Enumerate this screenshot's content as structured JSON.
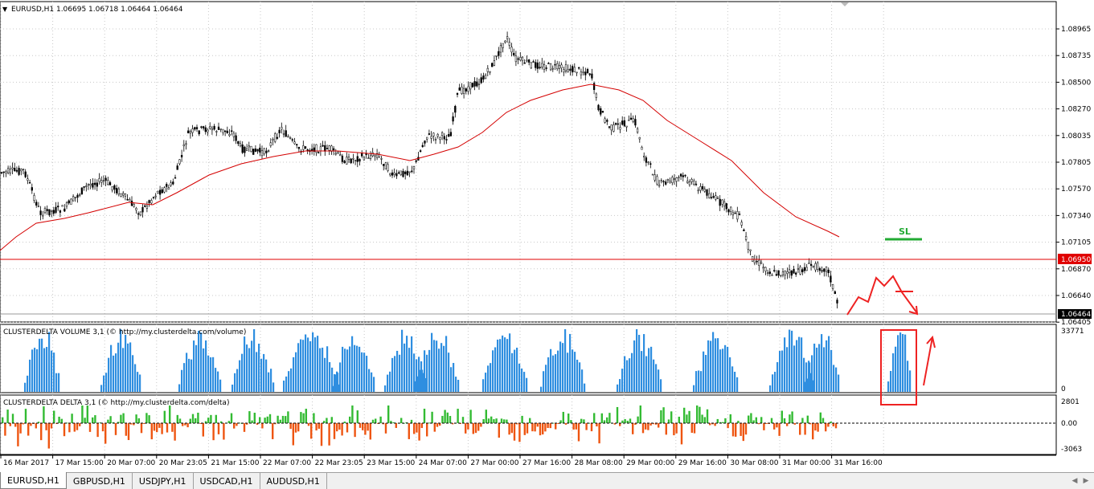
{
  "main": {
    "menu_arrow": "▼",
    "symbol_info": "EURUSD,H1  1.06695 1.06718 1.06464 1.06464",
    "price_ticks": [
      "1.08965",
      "1.08735",
      "1.08500",
      "1.08270",
      "1.08035",
      "1.07805",
      "1.07570",
      "1.07340",
      "1.07105",
      "1.06870",
      "1.06640",
      "1.06405"
    ],
    "level_label": "1.06950",
    "bid_label": "1.06464",
    "sl_label": "SL"
  },
  "volume": {
    "title": "CLUSTERDELTA VOLUME 3,1 (© http://my.clusterdelta.com/volume)",
    "max_label": "33771",
    "zero_label": "0"
  },
  "delta": {
    "title": "CLUSTERDELTA DELTA 3,1 (© http://my.clusterdelta.com/delta)",
    "top_label": "2801",
    "zero_label": "0.00",
    "bottom_label": "-3063"
  },
  "time_axis": [
    "16 Mar 2017",
    "17 Mar 15:00",
    "20 Mar 07:00",
    "20 Mar 23:05",
    "21 Mar 15:00",
    "22 Mar 07:00",
    "22 Mar 23:05",
    "23 Mar 15:00",
    "24 Mar 07:00",
    "27 Mar 00:00",
    "27 Mar 16:00",
    "28 Mar 08:00",
    "29 Mar 00:00",
    "29 Mar 16:00",
    "30 Mar 08:00",
    "31 Mar 00:00",
    "31 Mar 16:00"
  ],
  "tabs": [
    "EURUSD,H1",
    "GBPUSD,H1",
    "USDJPY,H1",
    "USDCAD,H1",
    "AUDUSD,H1"
  ],
  "colors": {
    "bull": "#000000",
    "ma": "#d40000",
    "level": "#e00000",
    "sl": "#22aa33",
    "volume": "#2e8ee0",
    "delta_pos": "#33bb33",
    "delta_neg": "#ee5511",
    "annotation": "#ee2222"
  }
}
